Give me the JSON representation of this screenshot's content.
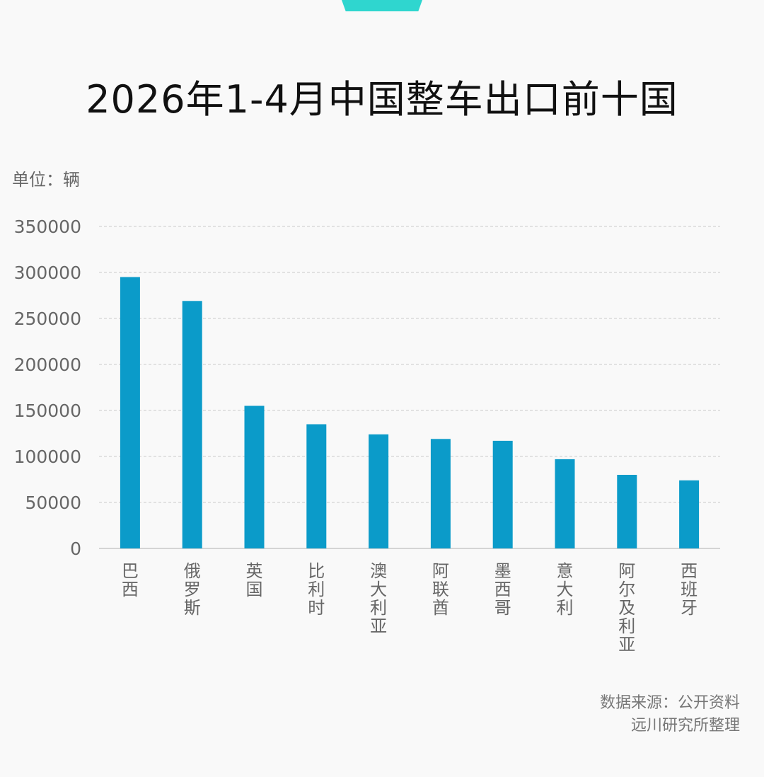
{
  "header": {
    "title": "2026年1-4月中国整车出口前十国",
    "unit": "单位：辆"
  },
  "footer": {
    "source_line1": "数据来源：公开资料",
    "source_line2": "远川研究所整理"
  },
  "colors": {
    "bar": "#0b9bc9",
    "accent_tab": "#2fd6cf",
    "grid": "#cccccc",
    "text": "#666666"
  },
  "chart_data": {
    "type": "bar",
    "categories": [
      "巴西",
      "俄罗斯",
      "英国",
      "比利时",
      "澳大利亚",
      "阿联酋",
      "墨西哥",
      "意大利",
      "阿尔及利亚",
      "西班牙"
    ],
    "values": [
      295000,
      269000,
      155000,
      135000,
      124000,
      119000,
      117000,
      97000,
      80000,
      74000
    ],
    "yticks": [
      0,
      50000,
      100000,
      150000,
      200000,
      250000,
      300000,
      350000
    ],
    "ylim": [
      0,
      350000
    ],
    "ylabel": "单位：辆",
    "grid": true,
    "legend": "none"
  }
}
